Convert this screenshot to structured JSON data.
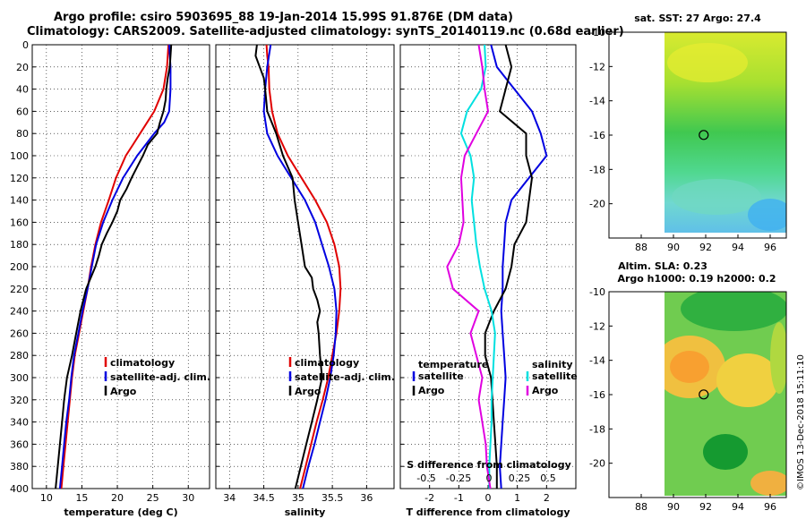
{
  "figure": {
    "title_line1": "Argo profile: csiro 5903695_88 19-Jan-2014 15.99S 91.876E (DM data)",
    "title_line2": "Climatology: CARS2009. Satellite-adjusted climatology: synTS_20140119.nc (0.68d earlier)",
    "stamp": "©IMOS 13-Dec-2018 15:11:10"
  },
  "colors": {
    "climatology": "#e00000",
    "satellite": "#0000e0",
    "argo": "#000000",
    "s_sat": "#00e0e0",
    "s_argo": "#e000e0"
  },
  "chart_data": [
    {
      "id": "temperature",
      "type": "line",
      "xlabel": "temperature (deg C)",
      "ylabel": "",
      "xlim": [
        8,
        33
      ],
      "ylim": [
        400,
        0
      ],
      "xticks": [
        10,
        15,
        20,
        25,
        30
      ],
      "yticks": [
        0,
        20,
        40,
        60,
        80,
        100,
        120,
        140,
        160,
        180,
        200,
        220,
        240,
        260,
        280,
        300,
        320,
        340,
        360,
        380,
        400
      ],
      "legend": [
        "climatology",
        "satellite-adj. clim.",
        "Argo"
      ],
      "series": [
        {
          "name": "climatology",
          "color": "#e00000",
          "depth": [
            0,
            20,
            40,
            60,
            70,
            80,
            90,
            100,
            120,
            140,
            160,
            180,
            200,
            220,
            240,
            260,
            280,
            300,
            320,
            340,
            360,
            380,
            400
          ],
          "values": [
            27.2,
            27.0,
            26.5,
            25.2,
            24.2,
            23.2,
            22.2,
            21.2,
            19.8,
            18.8,
            17.7,
            16.9,
            16.3,
            15.8,
            15.2,
            14.6,
            14.0,
            13.6,
            13.3,
            13.0,
            12.7,
            12.4,
            12.1
          ]
        },
        {
          "name": "satellite-adj. clim.",
          "color": "#0000e0",
          "depth": [
            0,
            20,
            40,
            60,
            70,
            80,
            90,
            100,
            120,
            140,
            160,
            180,
            200,
            220,
            240,
            260,
            280,
            300,
            320,
            340,
            360,
            380,
            400
          ],
          "values": [
            27.3,
            27.5,
            27.5,
            27.3,
            26.6,
            25.2,
            24.0,
            22.8,
            20.8,
            19.3,
            18.0,
            17.0,
            16.4,
            15.8,
            15.1,
            14.5,
            13.9,
            13.5,
            13.2,
            12.8,
            12.5,
            12.2,
            11.9
          ]
        },
        {
          "name": "Argo",
          "color": "#000000",
          "depth": [
            0,
            10,
            20,
            30,
            40,
            50,
            60,
            70,
            80,
            90,
            100,
            110,
            120,
            130,
            140,
            150,
            160,
            170,
            180,
            190,
            200,
            220,
            240,
            260,
            280,
            300,
            320,
            340,
            360,
            380,
            400
          ],
          "values": [
            27.6,
            27.5,
            27.4,
            27.1,
            26.9,
            26.8,
            26.5,
            26.0,
            25.6,
            24.3,
            23.6,
            22.8,
            22.0,
            21.3,
            20.4,
            20.0,
            19.3,
            18.5,
            17.8,
            17.4,
            16.9,
            15.6,
            14.8,
            14.2,
            13.6,
            12.9,
            12.5,
            12.2,
            11.9,
            11.6,
            11.3
          ]
        }
      ]
    },
    {
      "id": "salinity",
      "type": "line",
      "xlabel": "salinity",
      "ylabel": "",
      "xlim": [
        33.8,
        36.4
      ],
      "ylim": [
        400,
        0
      ],
      "xticks": [
        34,
        34.5,
        35,
        35.5,
        36
      ],
      "legend": [
        "climatology",
        "satellite-adj. clim.",
        "Argo"
      ],
      "series": [
        {
          "name": "climatology",
          "color": "#e00000",
          "depth": [
            0,
            10,
            20,
            40,
            60,
            80,
            100,
            120,
            140,
            160,
            180,
            200,
            220,
            240,
            260,
            280,
            300,
            320,
            340,
            360,
            380,
            400
          ],
          "values": [
            34.54,
            34.55,
            34.57,
            34.58,
            34.62,
            34.7,
            34.85,
            35.05,
            35.25,
            35.42,
            35.53,
            35.6,
            35.62,
            35.6,
            35.56,
            35.5,
            35.44,
            35.36,
            35.27,
            35.19,
            35.11,
            35.03
          ]
        },
        {
          "name": "satellite-adj. clim.",
          "color": "#0000e0",
          "depth": [
            0,
            20,
            40,
            60,
            80,
            100,
            120,
            140,
            160,
            180,
            200,
            220,
            240,
            260,
            280,
            300,
            320,
            340,
            360,
            380,
            400
          ],
          "values": [
            34.6,
            34.55,
            34.52,
            34.5,
            34.55,
            34.7,
            34.9,
            35.1,
            35.25,
            35.35,
            35.45,
            35.53,
            35.56,
            35.55,
            35.52,
            35.47,
            35.4,
            35.32,
            35.24,
            35.15,
            35.07
          ]
        },
        {
          "name": "Argo",
          "color": "#000000",
          "depth": [
            0,
            10,
            20,
            30,
            40,
            60,
            80,
            100,
            120,
            140,
            160,
            180,
            200,
            210,
            220,
            230,
            240,
            250,
            260,
            280,
            300,
            320,
            340,
            360,
            380,
            400
          ],
          "values": [
            34.4,
            34.38,
            34.44,
            34.5,
            34.52,
            34.55,
            34.68,
            34.78,
            34.92,
            34.95,
            35.0,
            35.05,
            35.1,
            35.2,
            35.22,
            35.28,
            35.32,
            35.28,
            35.3,
            35.32,
            35.35,
            35.28,
            35.2,
            35.12,
            35.04,
            34.96
          ]
        }
      ]
    },
    {
      "id": "difference",
      "type": "line",
      "xlabel": "T difference from climatology",
      "xlabel_top": "S difference from climatology",
      "xlim": [
        -3,
        3
      ],
      "ylim": [
        400,
        0
      ],
      "xticks": [
        -2,
        -1,
        0,
        1,
        2
      ],
      "xticks_top": [
        "-0.5",
        "-0.25",
        "0",
        "0.25",
        "0.5"
      ],
      "legend_left_title": "temperature",
      "legend_right_title": "salinity",
      "legend": [
        "satellite",
        "Argo",
        "satellite",
        "Argo"
      ],
      "series": [
        {
          "name": "T satellite",
          "color": "#0000e0",
          "depth": [
            0,
            20,
            40,
            60,
            80,
            100,
            120,
            140,
            160,
            180,
            200,
            220,
            240,
            260,
            280,
            300,
            320,
            340,
            360,
            380,
            400
          ],
          "values": [
            0.1,
            0.3,
            0.9,
            1.5,
            1.8,
            2.0,
            1.4,
            0.8,
            0.6,
            0.55,
            0.5,
            0.5,
            0.45,
            0.5,
            0.55,
            0.6,
            0.55,
            0.5,
            0.45,
            0.4,
            0.45
          ]
        },
        {
          "name": "T Argo",
          "color": "#000000",
          "depth": [
            0,
            20,
            40,
            60,
            80,
            100,
            120,
            140,
            160,
            180,
            200,
            220,
            240,
            260,
            280,
            300,
            320,
            340,
            360,
            380,
            400
          ],
          "values": [
            0.6,
            0.8,
            0.6,
            0.4,
            1.3,
            1.3,
            1.5,
            1.4,
            1.3,
            0.9,
            0.8,
            0.6,
            0.2,
            -0.1,
            -0.1,
            0.1,
            0.15,
            0.2,
            0.25,
            0.3,
            0.3
          ]
        },
        {
          "name": "S satellite",
          "color": "#00e0e0",
          "depth": [
            0,
            20,
            40,
            60,
            80,
            100,
            120,
            140,
            160,
            180,
            200,
            220,
            240,
            260,
            280,
            300,
            320,
            340,
            360,
            380,
            400
          ],
          "values": [
            -0.03,
            -0.02,
            -0.06,
            -0.18,
            -0.23,
            -0.15,
            -0.12,
            -0.14,
            -0.12,
            -0.1,
            -0.07,
            -0.03,
            0.03,
            0.06,
            0.05,
            0.04,
            0.03,
            0.03,
            0.02,
            0.01,
            0.01
          ]
        },
        {
          "name": "S Argo",
          "color": "#e000e0",
          "depth": [
            0,
            20,
            40,
            60,
            80,
            100,
            120,
            140,
            160,
            180,
            200,
            220,
            240,
            260,
            280,
            300,
            320,
            340,
            360,
            380,
            400
          ],
          "values": [
            -0.08,
            -0.05,
            -0.03,
            0.0,
            -0.1,
            -0.2,
            -0.23,
            -0.22,
            -0.21,
            -0.25,
            -0.35,
            -0.3,
            -0.08,
            -0.15,
            -0.1,
            -0.05,
            -0.08,
            -0.05,
            -0.02,
            -0.01,
            0.02
          ]
        }
      ]
    },
    {
      "id": "sst_map",
      "type": "heatmap",
      "title": "sat. SST: 27 Argo: 27.4",
      "xlim": [
        86.0,
        97.0
      ],
      "ylim": [
        -22,
        -10
      ],
      "xticks": [
        88,
        90,
        92,
        94,
        96
      ],
      "yticks": [
        -10,
        -12,
        -14,
        -16,
        -18,
        -20
      ],
      "marker_lon": 91.876,
      "marker_lat": -15.99
    },
    {
      "id": "sla_map",
      "type": "heatmap",
      "title": "Altim. SLA: 0.23",
      "subtitle": "Argo h1000: 0.19 h2000: 0.2",
      "xlim": [
        86.0,
        97.0
      ],
      "ylim": [
        -22,
        -10
      ],
      "xticks": [
        88,
        90,
        92,
        94,
        96
      ],
      "yticks": [
        -10,
        -12,
        -14,
        -16,
        -18,
        -20
      ],
      "marker_lon": 91.876,
      "marker_lat": -15.99
    }
  ]
}
